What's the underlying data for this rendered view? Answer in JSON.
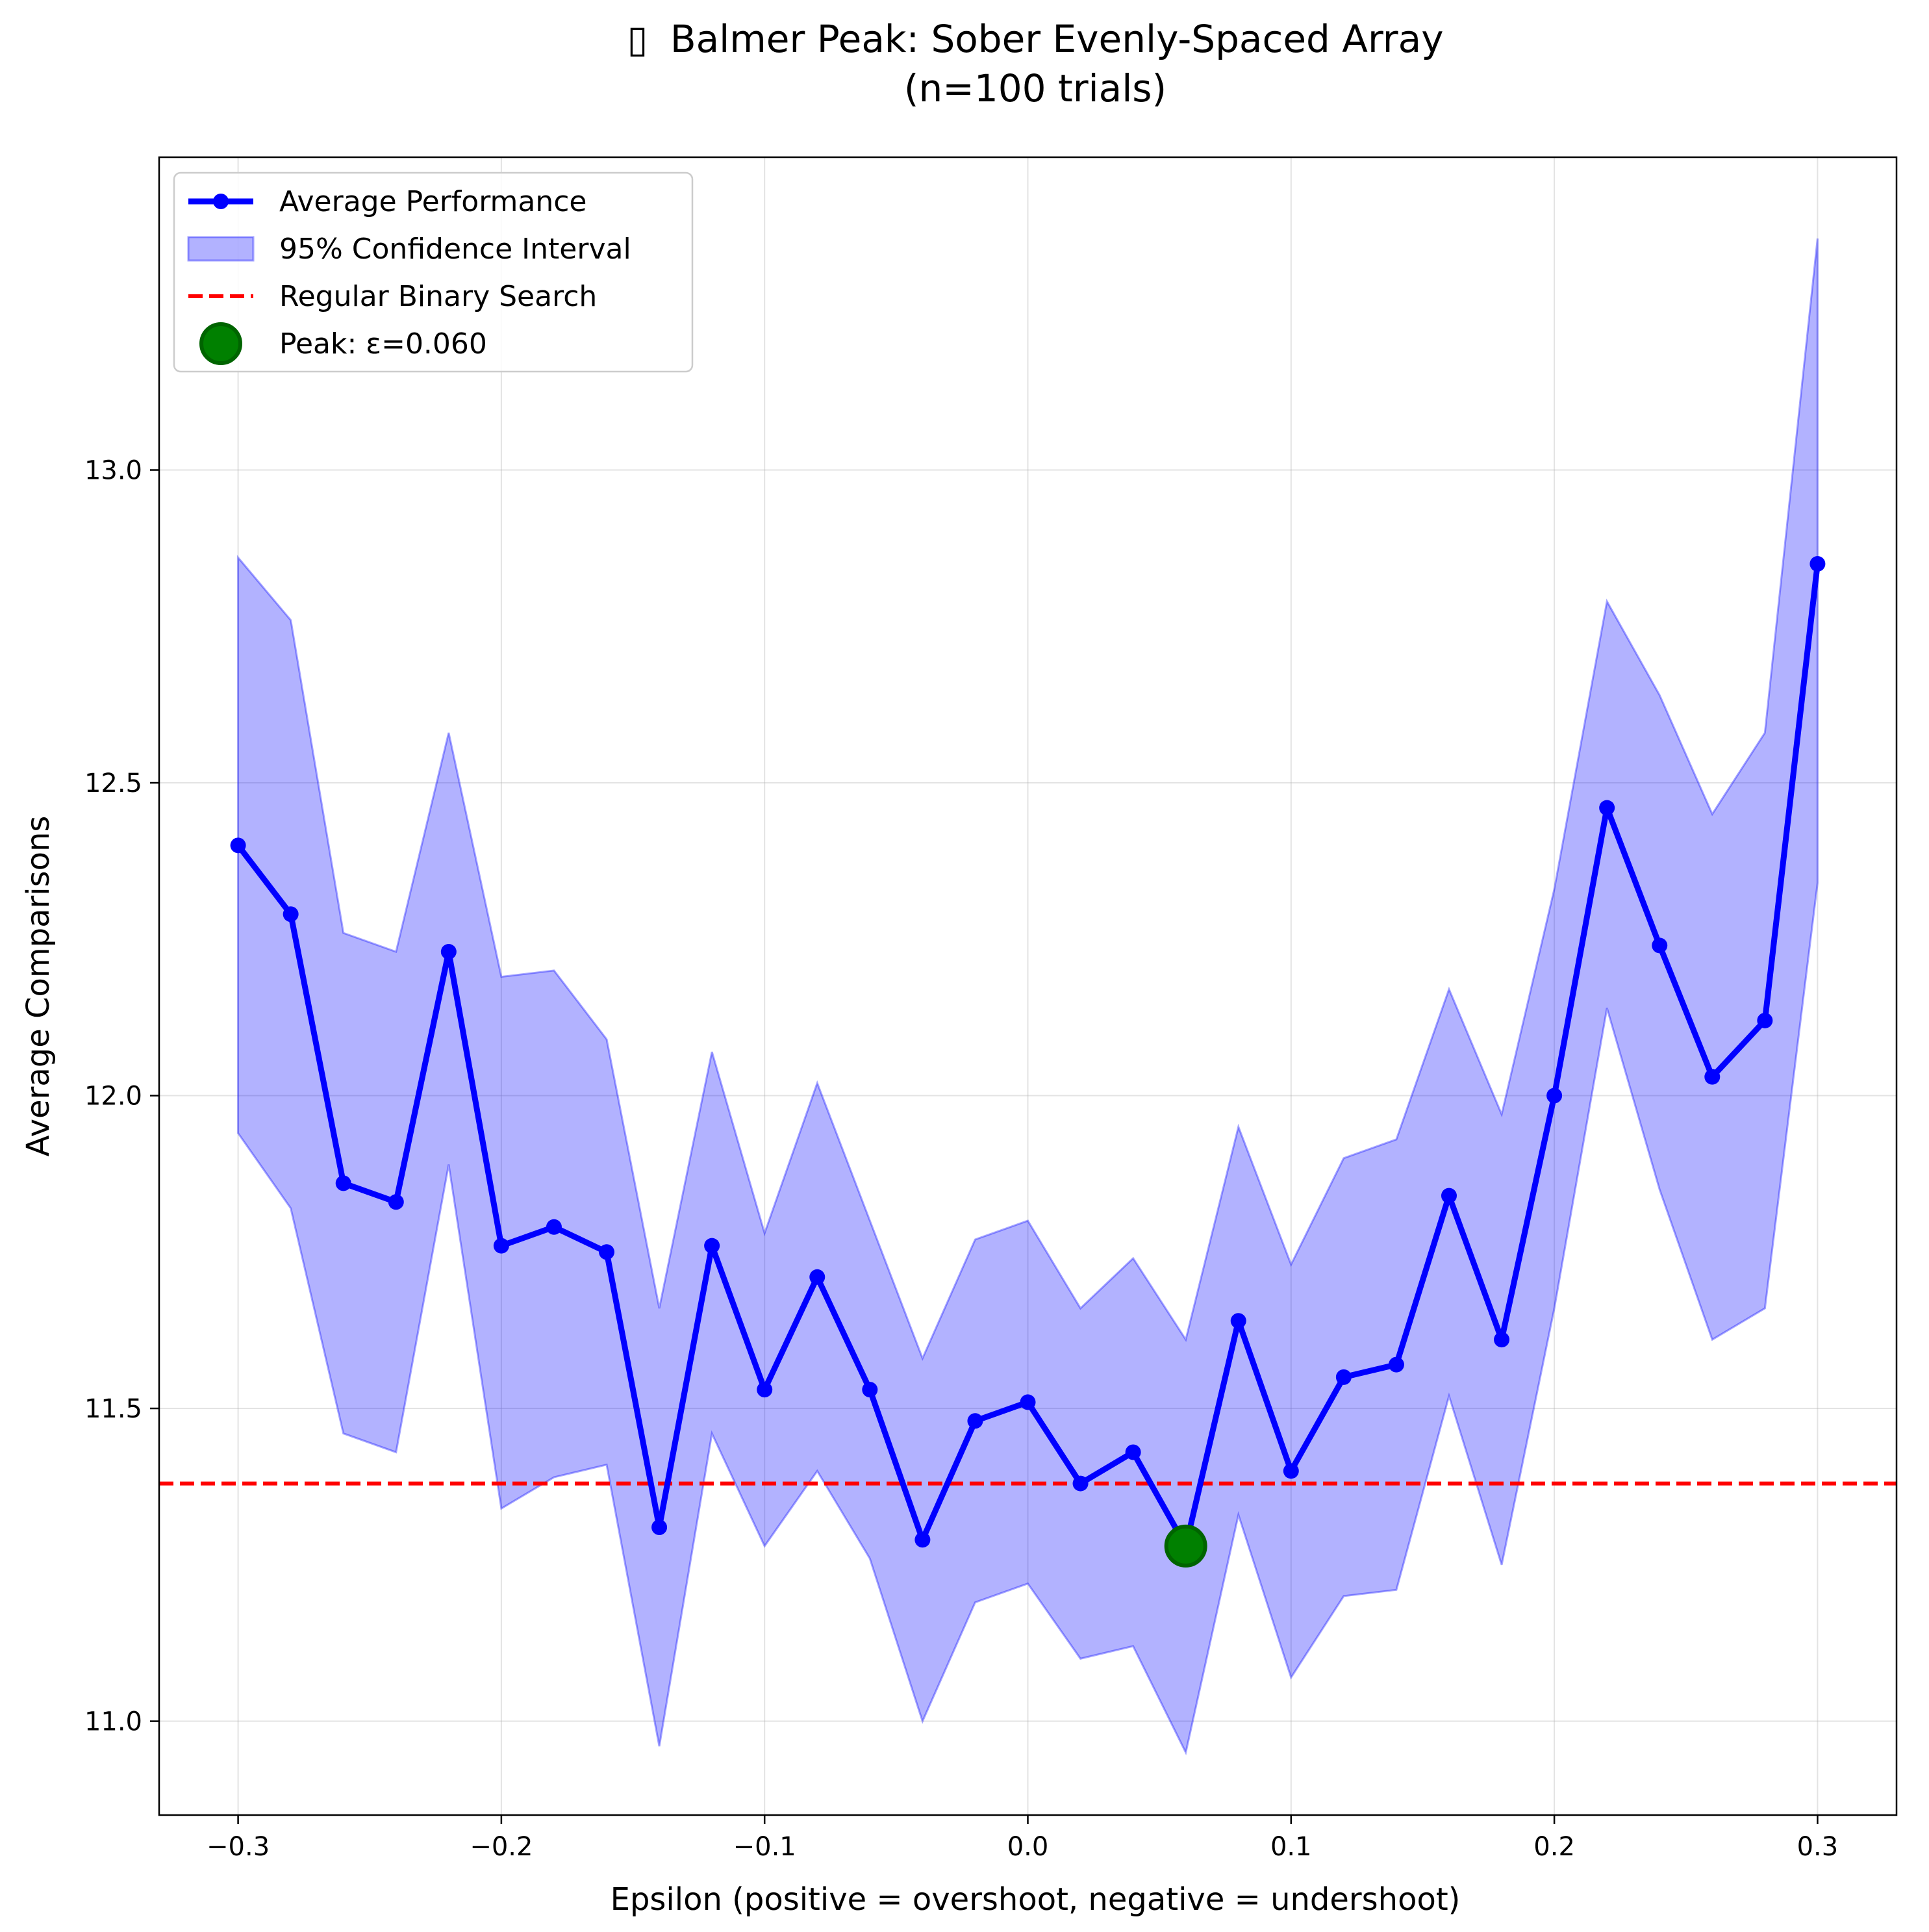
{
  "chart_data": {
    "type": "line",
    "title": "\u0000 Balmer Peak: Sober Evenly-Spaced Array",
    "title_glyph": "▯",
    "title_text": "Balmer Peak: Sober Evenly-Spaced Array",
    "subtitle": "(n=100 trials)",
    "xlabel": "Epsilon (positive = overshoot, negative = undershoot)",
    "ylabel": "Average Comparisons",
    "xlim": [
      -0.33,
      0.33
    ],
    "ylim": [
      10.85,
      13.5
    ],
    "grid": true,
    "legend_position": "top-left",
    "x_ticks": [
      -0.3,
      -0.2,
      -0.1,
      0.0,
      0.1,
      0.2,
      0.3
    ],
    "x_tick_labels": [
      "−0.3",
      "−0.2",
      "−0.1",
      "0.0",
      "0.1",
      "0.2",
      "0.3"
    ],
    "y_ticks": [
      11.0,
      11.5,
      12.0,
      12.5,
      13.0
    ],
    "y_tick_labels": [
      "11.0",
      "11.5",
      "12.0",
      "12.5",
      "13.0"
    ],
    "x": [
      -0.3,
      -0.28,
      -0.26,
      -0.24,
      -0.22,
      -0.2,
      -0.18,
      -0.16,
      -0.14,
      -0.12,
      -0.1,
      -0.08,
      -0.06,
      -0.04,
      -0.02,
      0.0,
      0.02,
      0.04,
      0.06,
      0.08,
      0.1,
      0.12,
      0.14,
      0.16,
      0.18,
      0.2,
      0.22,
      0.24,
      0.26,
      0.28,
      0.3
    ],
    "series": [
      {
        "name": "Average Performance",
        "type": "line",
        "color": "#0000ff",
        "values": [
          12.4,
          12.29,
          11.86,
          11.83,
          12.23,
          11.76,
          11.79,
          11.75,
          11.31,
          11.76,
          11.53,
          11.71,
          11.53,
          11.29,
          11.48,
          11.51,
          11.38,
          11.43,
          11.28,
          11.64,
          11.4,
          11.55,
          11.57,
          11.84,
          11.61,
          12.0,
          12.46,
          12.24,
          12.03,
          12.12,
          12.85
        ]
      },
      {
        "name": "95% Confidence Interval",
        "type": "band",
        "color": "#0000ff",
        "lower": [
          11.94,
          11.82,
          11.46,
          11.43,
          11.89,
          11.34,
          11.39,
          11.41,
          10.96,
          11.46,
          11.28,
          11.4,
          11.26,
          11.0,
          11.19,
          11.22,
          11.1,
          11.12,
          10.95,
          11.33,
          11.07,
          11.2,
          11.21,
          11.52,
          11.25,
          11.66,
          12.14,
          11.85,
          11.61,
          11.66,
          12.34
        ],
        "upper": [
          12.86,
          12.76,
          12.26,
          12.23,
          12.58,
          12.19,
          12.2,
          12.09,
          11.66,
          12.07,
          11.78,
          12.02,
          11.8,
          11.58,
          11.77,
          11.8,
          11.66,
          11.74,
          11.61,
          11.95,
          11.73,
          11.9,
          11.93,
          12.17,
          11.97,
          12.33,
          12.79,
          12.64,
          12.45,
          12.58,
          13.37
        ]
      },
      {
        "name": "Regular Binary Search",
        "type": "hline",
        "color": "#ff0000",
        "value": 11.38
      },
      {
        "name": "Peak: ε=0.060",
        "type": "marker",
        "color": "#008000",
        "x": 0.06,
        "y": 11.28
      }
    ],
    "legend": [
      {
        "label": "Average Performance",
        "kind": "line-marker",
        "color": "#0000ff"
      },
      {
        "label": "95% Confidence Interval",
        "kind": "patch",
        "color": "#0000ff"
      },
      {
        "label": "Regular Binary Search",
        "kind": "dashed",
        "color": "#ff0000"
      },
      {
        "label": "Peak: ε=0.060",
        "kind": "big-marker",
        "color": "#008000"
      }
    ]
  }
}
